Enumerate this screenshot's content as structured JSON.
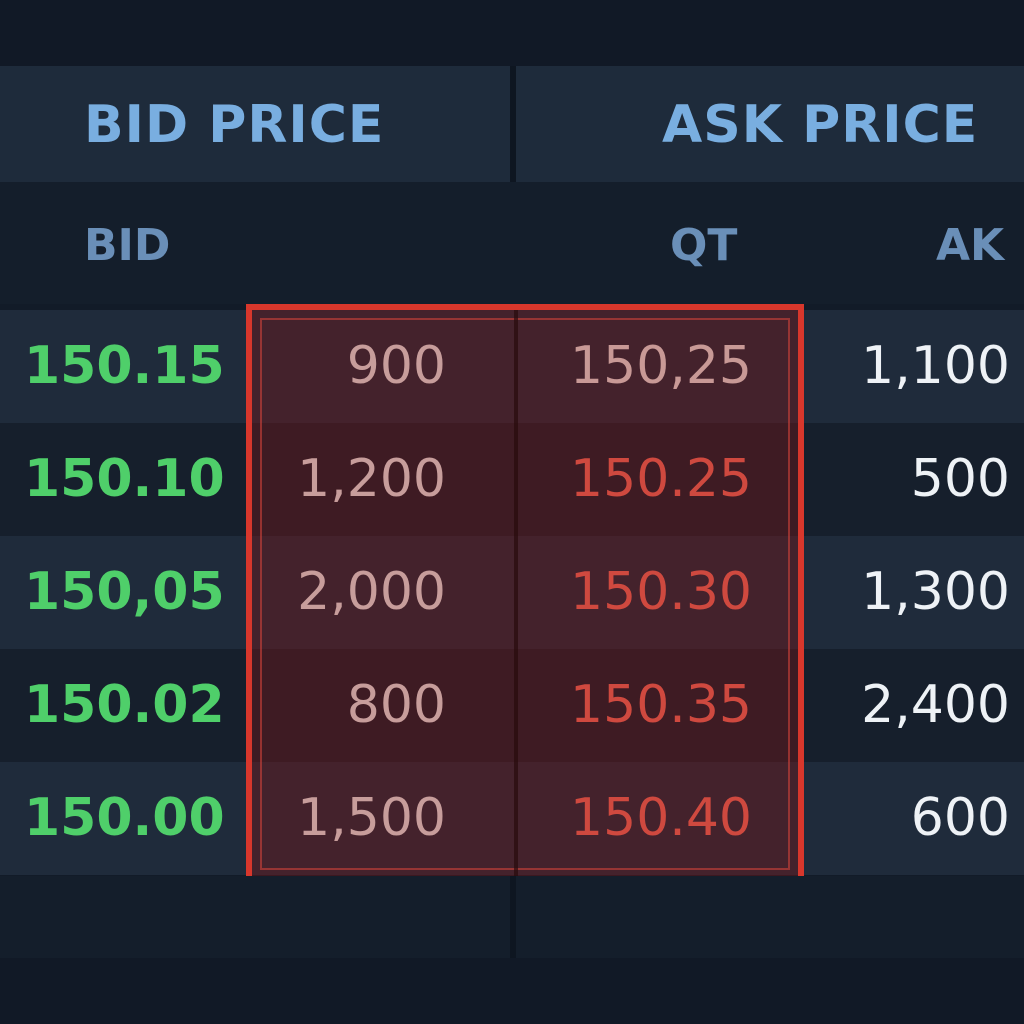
{
  "header": {
    "bid_label": "BID PRICE",
    "ask_label": "ASK PRICE"
  },
  "sub_header": {
    "bid_label": "BID",
    "qt_label": "QT",
    "ak_label": "AK"
  },
  "rows": [
    {
      "bid_price": "150.15",
      "bid_qty": "900",
      "ask_price": "150,25",
      "ask_qty": "1,100"
    },
    {
      "bid_price": "150.10",
      "bid_qty": "1,200",
      "ask_price": "150.25",
      "ask_qty": "500"
    },
    {
      "bid_price": "150,05",
      "bid_qty": "2,000",
      "ask_price": "150.30",
      "ask_qty": "1,300"
    },
    {
      "bid_price": "150.02",
      "bid_qty": "800",
      "ask_price": "150.35",
      "ask_qty": "2,400"
    },
    {
      "bid_price": "150.00",
      "bid_qty": "1,500",
      "ask_price": "150.40",
      "ask_qty": "600"
    }
  ],
  "colors": {
    "bid_price": "#4fcf6a",
    "ask_price": "#ff6a5a",
    "header_text": "#79aee0",
    "highlight_border": "#d8372c"
  }
}
